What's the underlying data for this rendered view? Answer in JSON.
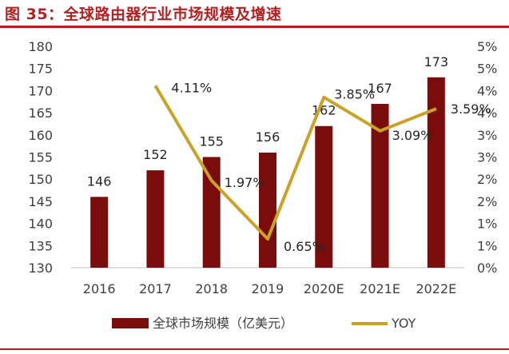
{
  "header": {
    "figure_title": "图 35：全球路由器行业市场规模及增速"
  },
  "chart_data": {
    "type": "bar",
    "title": "图 35：全球路由器行业市场规模及增速",
    "categories": [
      "2016",
      "2017",
      "2018",
      "2019",
      "2020E",
      "2021E",
      "2022E"
    ],
    "series": [
      {
        "name": "全球市场规模（亿美元）",
        "type": "bar",
        "axis": "left",
        "color": "#7b0c0c",
        "values": [
          146,
          152,
          155,
          156,
          162,
          167,
          173
        ],
        "labels": [
          "146",
          "152",
          "155",
          "156",
          "162",
          "167",
          "173"
        ]
      },
      {
        "name": "YOY",
        "type": "line",
        "axis": "right",
        "color": "#c9a227",
        "values": [
          null,
          4.11,
          1.97,
          0.65,
          3.85,
          3.09,
          3.59
        ],
        "labels": [
          "",
          "4.11%",
          "1.97%",
          "0.65%",
          "3.85%",
          "3.09%",
          "3.59%"
        ]
      }
    ],
    "left_axis": {
      "ylim": [
        130,
        180
      ],
      "ticks": [
        "130",
        "135",
        "140",
        "145",
        "150",
        "155",
        "160",
        "165",
        "170",
        "175",
        "180"
      ]
    },
    "right_axis": {
      "ylim": [
        0,
        5
      ],
      "ticks": [
        "0%",
        "1%",
        "1%",
        "2%",
        "2%",
        "3%",
        "3%",
        "4%",
        "4%",
        "5%",
        "5%"
      ]
    },
    "grid": false,
    "legend_position": "bottom"
  }
}
